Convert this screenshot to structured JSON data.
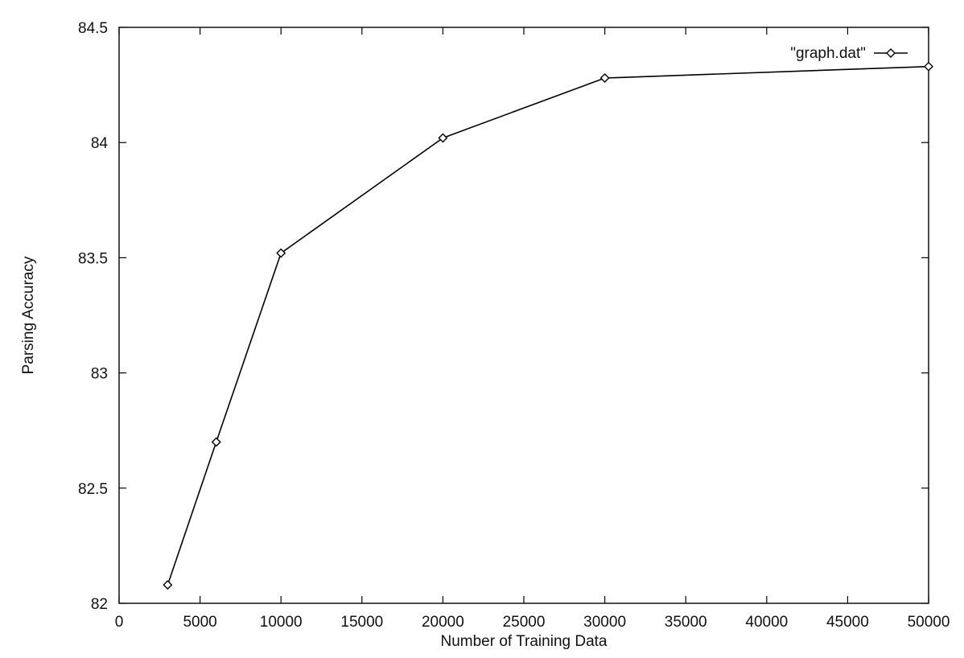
{
  "chart_data": {
    "type": "line",
    "title": "",
    "xlabel": "Number of Training Data",
    "ylabel": "Parsing Accuracy",
    "xlim": [
      0,
      50000
    ],
    "ylim": [
      82,
      84.5
    ],
    "x_ticks": [
      0,
      5000,
      10000,
      15000,
      20000,
      25000,
      30000,
      35000,
      40000,
      45000,
      50000
    ],
    "y_ticks": [
      82,
      82.5,
      83,
      83.5,
      84,
      84.5
    ],
    "x_tick_labels": [
      "0",
      "5000",
      "10000",
      "15000",
      "20000",
      "25000",
      "30000",
      "35000",
      "40000",
      "45000",
      "50000"
    ],
    "y_tick_labels": [
      "82",
      "82.5",
      "83",
      "83.5",
      "84",
      "84.5"
    ],
    "grid": false,
    "legend_position": "top-right",
    "marker": "diamond",
    "series": [
      {
        "name": "\"graph.dat\"",
        "x": [
          3000,
          6000,
          10000,
          20000,
          30000,
          50000
        ],
        "y": [
          82.08,
          82.7,
          83.52,
          84.02,
          84.28,
          84.33
        ],
        "color": "#000000"
      }
    ]
  }
}
